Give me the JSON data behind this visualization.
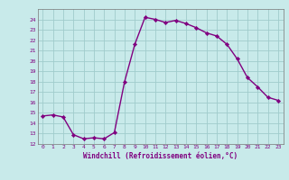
{
  "x": [
    0,
    1,
    2,
    3,
    4,
    5,
    6,
    7,
    8,
    9,
    10,
    11,
    12,
    13,
    14,
    15,
    16,
    17,
    18,
    19,
    20,
    21,
    22,
    23
  ],
  "y": [
    14.7,
    14.8,
    14.6,
    12.9,
    12.5,
    12.6,
    12.5,
    13.1,
    18.0,
    21.6,
    24.2,
    24.0,
    23.7,
    23.9,
    23.6,
    23.2,
    22.7,
    22.4,
    21.6,
    20.2,
    18.4,
    17.5,
    16.5,
    16.2
  ],
  "line_color": "#800080",
  "marker": "D",
  "marker_size": 2.2,
  "bg_color": "#c8eaea",
  "grid_color": "#a0cccc",
  "xlabel": "Windchill (Refroidissement éolien,°C)",
  "xlabel_color": "#800080",
  "tick_color": "#800080",
  "xlim": [
    -0.5,
    23.5
  ],
  "ylim": [
    12,
    25
  ],
  "yticks": [
    12,
    13,
    14,
    15,
    16,
    17,
    18,
    19,
    20,
    21,
    22,
    23,
    24
  ],
  "xticks": [
    0,
    1,
    2,
    3,
    4,
    5,
    6,
    7,
    8,
    9,
    10,
    11,
    12,
    13,
    14,
    15,
    16,
    17,
    18,
    19,
    20,
    21,
    22,
    23
  ],
  "line_width": 1.0,
  "marker_color": "#800080"
}
